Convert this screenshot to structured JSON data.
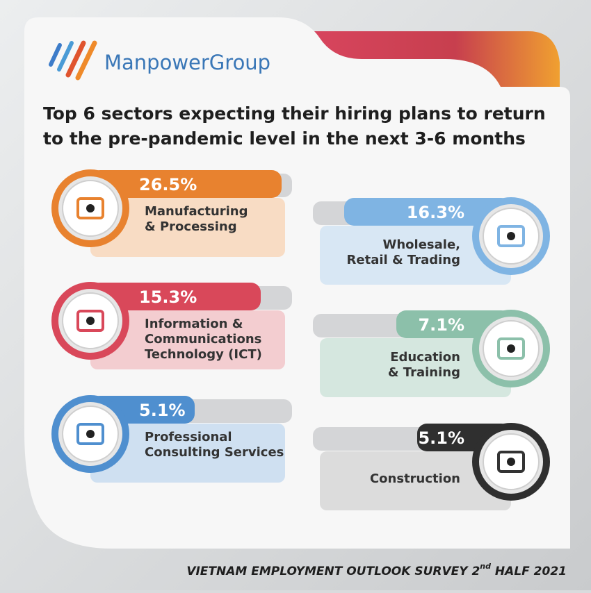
{
  "brand": "ManpowerGroup",
  "title_lines": [
    "Top 6 sectors expecting their hiring plans to return",
    "to the pre-pandemic level in the next 3-6 months"
  ],
  "sectors": [
    {
      "value": "26.5%",
      "lines": [
        "Manufacturing",
        "& Processing"
      ],
      "color": "#e8822f",
      "panel": "#f8dcc4"
    },
    {
      "value": "16.3%",
      "lines": [
        "Wholesale,",
        "Retail & Trading"
      ],
      "color": "#7fb4e3",
      "panel": "#d8e7f4"
    },
    {
      "value": "15.3%",
      "lines": [
        "Information &",
        "Communications",
        "Technology (ICT)"
      ],
      "color": "#d9485a",
      "panel": "#f3cdd0"
    },
    {
      "value": "7.1%",
      "lines": [
        "Education",
        "& Training"
      ],
      "color": "#8cc0aa",
      "panel": "#d5e7df"
    },
    {
      "value": "5.1%",
      "lines": [
        "Professional",
        "Consulting Services"
      ],
      "color": "#4f8fcf",
      "panel": "#cfe0f1"
    },
    {
      "value": "5.1%",
      "lines": [
        "Construction"
      ],
      "color": "#2f2f2f",
      "panel": "#dcdcdc"
    }
  ],
  "footer": {
    "before": "VIETNAM EMPLOYMENT OUTLOOK SURVEY 2",
    "sup": "nd",
    "after": " HALF 2021"
  }
}
